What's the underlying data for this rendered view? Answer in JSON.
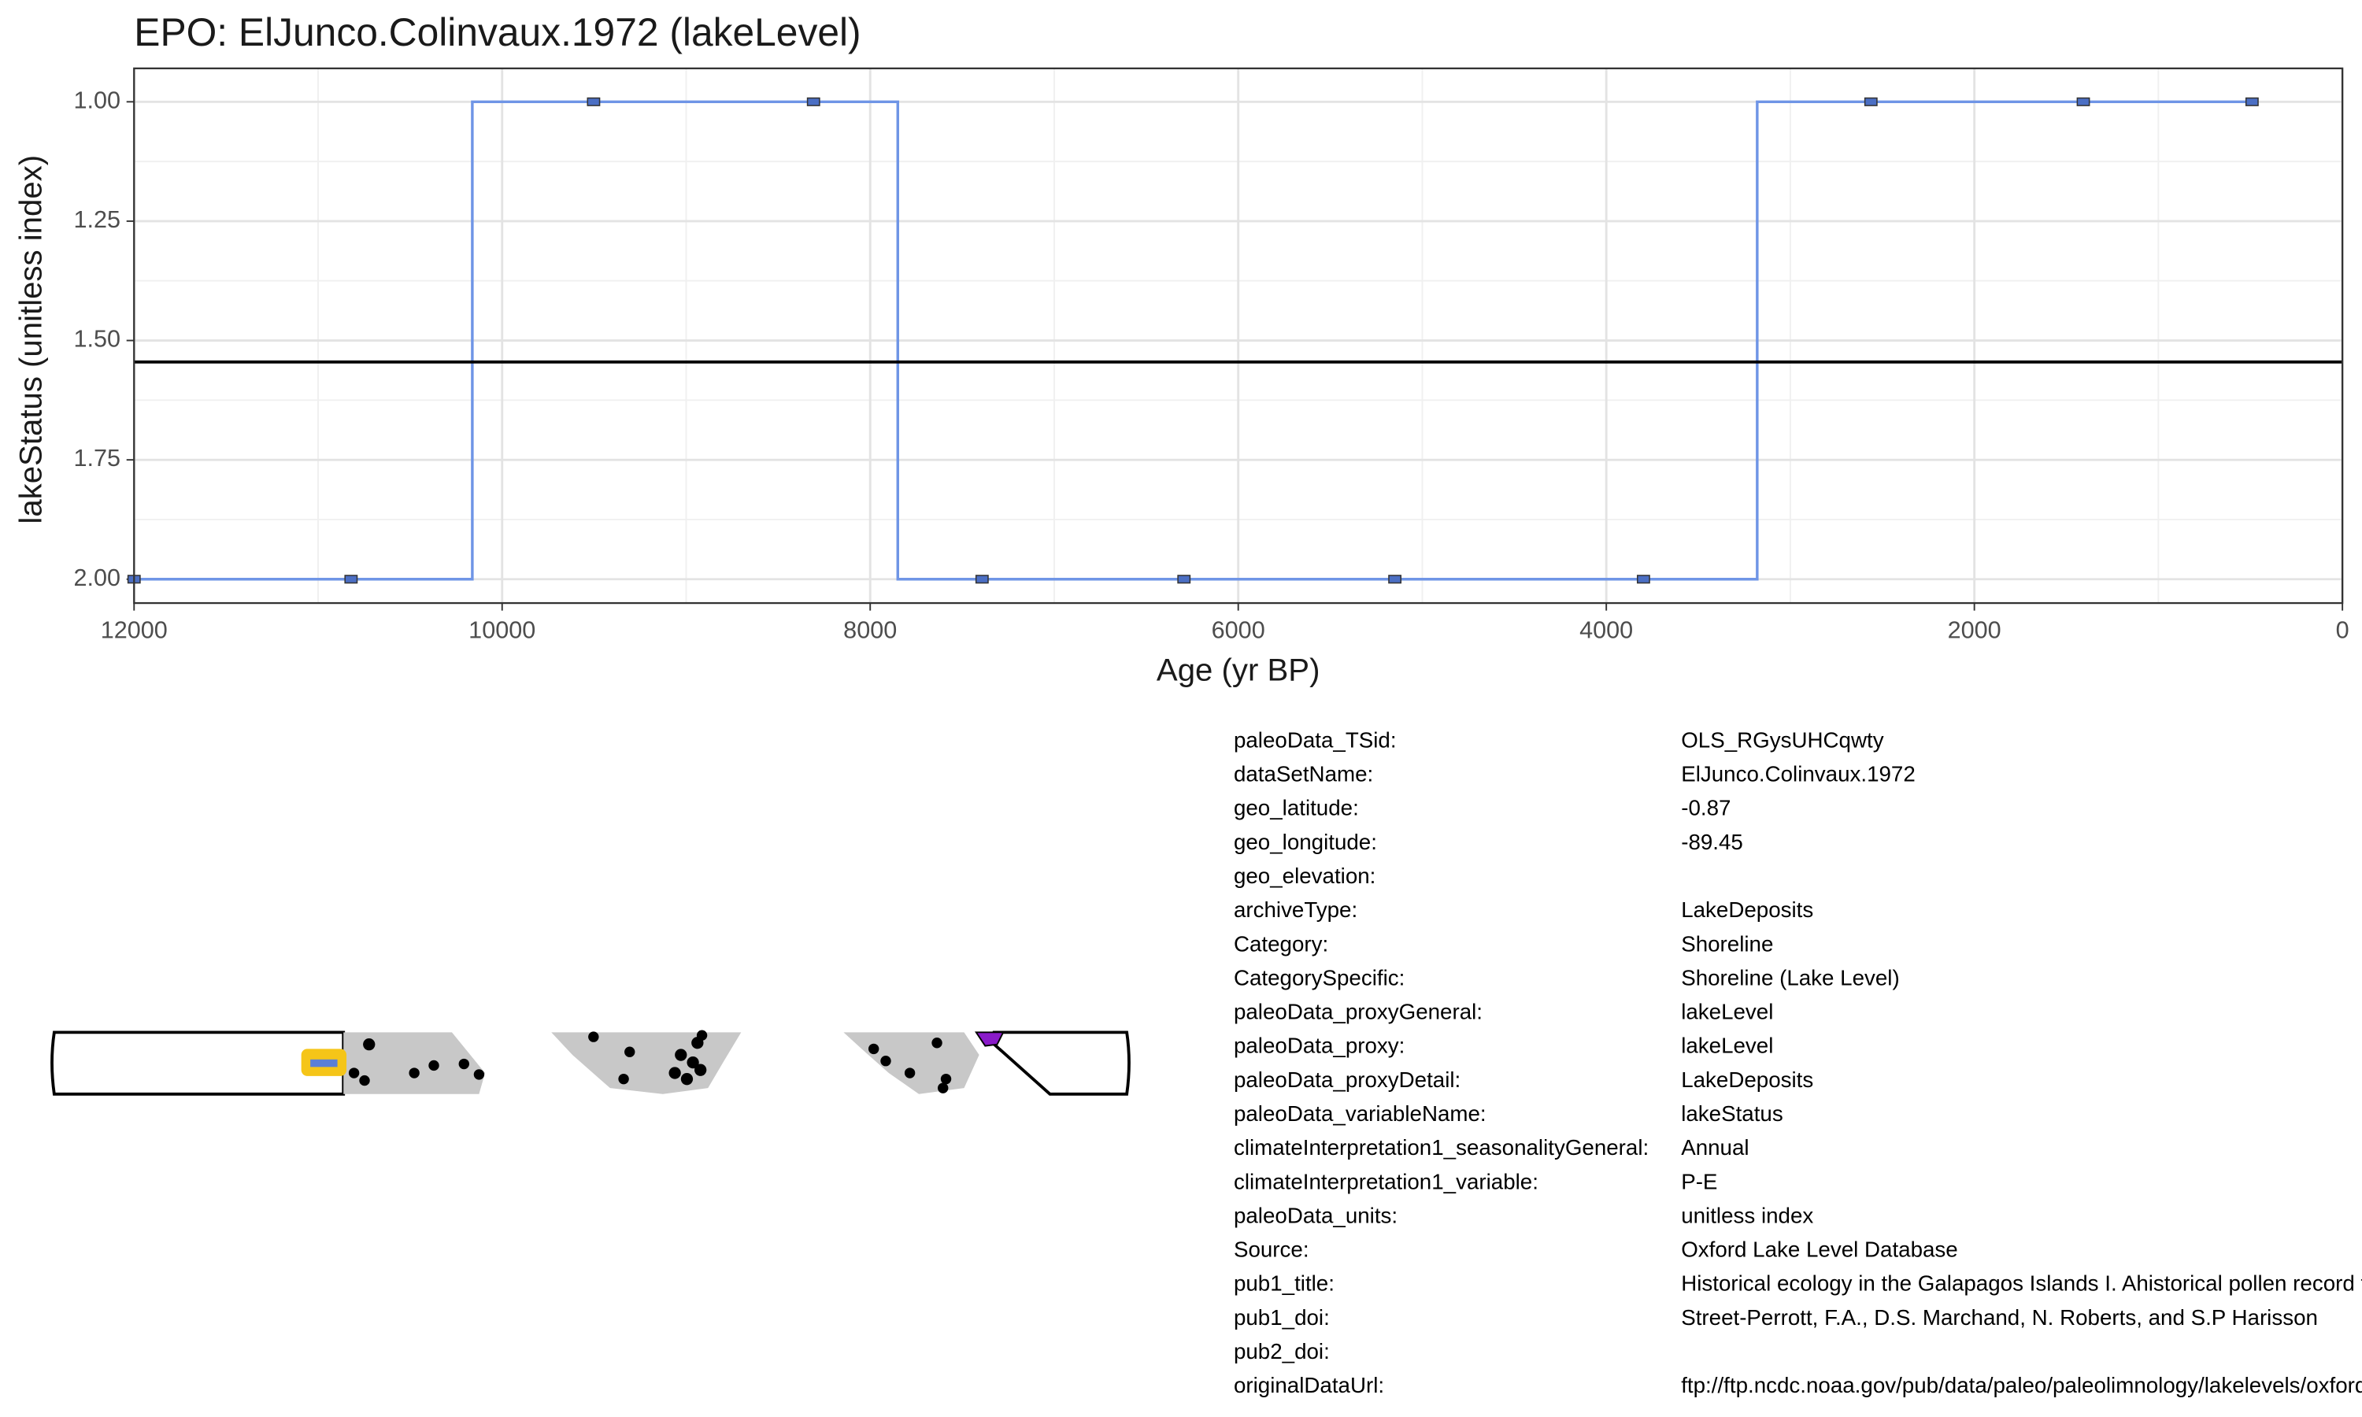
{
  "chart_data": {
    "type": "step",
    "title": "EPO: ElJunco.Colinvaux.1972 (lakeLevel)",
    "x_label": "Age (yr BP)",
    "y_label": "lakeStatus (unitless index)",
    "x": [
      12000,
      10821,
      9503,
      8308,
      7392,
      6295,
      5149,
      3798,
      2562,
      1408,
      491
    ],
    "values": [
      2,
      2,
      1,
      1,
      2,
      2,
      2,
      2,
      1,
      1,
      1
    ],
    "color": "#6f95e6",
    "marker_color": "#4b6fc4",
    "hline": 1.545,
    "hline_color": "#000000",
    "xlim": [
      12000,
      0
    ],
    "ylim": [
      2.05,
      0.93
    ],
    "xticks": [
      12000,
      10000,
      8000,
      6000,
      4000,
      2000,
      0
    ],
    "yticks": [
      {
        "value": 1,
        "label": "1.00"
      },
      {
        "value": 1.25,
        "label": "1.25"
      },
      {
        "value": 1.5,
        "label": "1.50"
      },
      {
        "value": 1.75,
        "label": "1.75"
      },
      {
        "value": 2,
        "label": "2.00"
      }
    ],
    "grid": true
  },
  "metadata": {
    "rows": [
      {
        "key": "paleoData_TSid:",
        "value": "OLS_RGysUHCqwty"
      },
      {
        "key": "dataSetName:",
        "value": "ElJunco.Colinvaux.1972"
      },
      {
        "key": "geo_latitude:",
        "value": "-0.87"
      },
      {
        "key": "geo_longitude:",
        "value": "-89.45"
      },
      {
        "key": "geo_elevation:"
      },
      {
        "key": "archiveType:",
        "value": "LakeDeposits"
      },
      {
        "key": "Category:",
        "value": "Shoreline"
      },
      {
        "key": "CategorySpecific:",
        "value": "Shoreline (Lake Level)"
      },
      {
        "key": "paleoData_proxyGeneral:",
        "value": "lakeLevel"
      },
      {
        "key": "paleoData_proxy:",
        "value": "lakeLevel"
      },
      {
        "key": "paleoData_proxyDetail:",
        "value": "LakeDeposits"
      },
      {
        "key": "paleoData_variableName:",
        "value": "lakeStatus"
      },
      {
        "key": "climateInterpretation1_seasonalityGeneral:",
        "value": "Annual"
      },
      {
        "key": "climateInterpretation1_variable:",
        "value": "P-E"
      },
      {
        "key": "paleoData_units:",
        "value": "unitless index"
      },
      {
        "key": "Source:",
        "value": "Oxford Lake Level Database"
      },
      {
        "key": "pub1_title:",
        "value": "Historical ecology in the Galapagos Islands I. Ahistorical pollen record from El Junco Lake, Isla San Cristobal"
      },
      {
        "key": "pub1_doi:",
        "value": "Street-Perrott, F.A., D.S. Marchand, N. Roberts, and S.P Harisson"
      },
      {
        "key": "pub2_doi:"
      },
      {
        "key": "originalDataUrl:",
        "value": "ftp://ftp.ncdc.noaa.gov/pub/data/paleo/paleolimnology/lakelevels/oxford"
      }
    ]
  }
}
